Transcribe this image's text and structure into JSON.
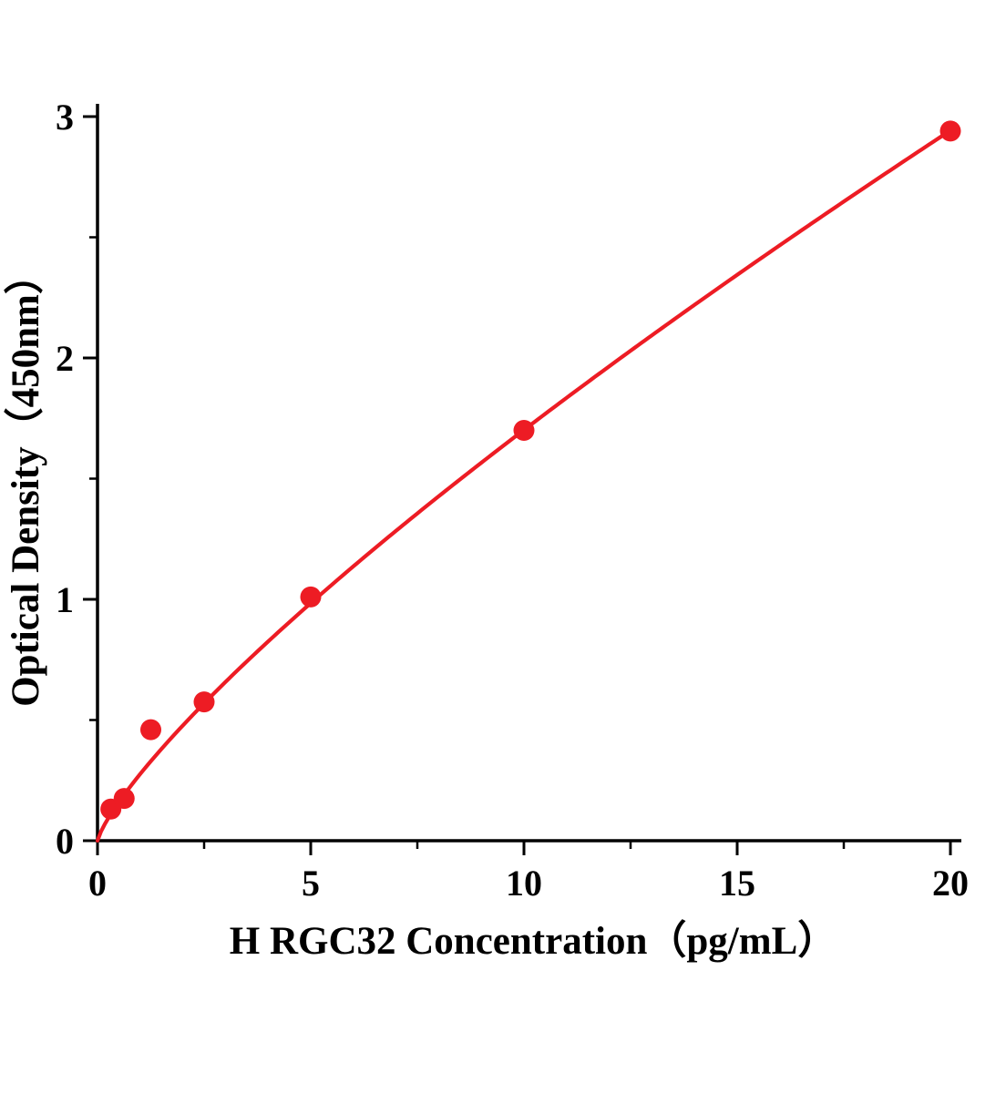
{
  "page": {
    "background": "#ffffff"
  },
  "chart_data": {
    "type": "scatter",
    "title": "",
    "xlabel": "H RGC32 Concentration（pg/mL）",
    "ylabel": "Optical Density（450nm）",
    "xlim": [
      0,
      20
    ],
    "ylim": [
      0,
      3
    ],
    "x_ticks": [
      0,
      5,
      10,
      15,
      20
    ],
    "y_ticks": [
      0,
      1,
      2,
      3
    ],
    "x_minor_ticks": [
      2.5,
      7.5,
      12.5,
      17.5
    ],
    "y_minor_ticks": [
      0.5,
      1.5,
      2.5
    ],
    "grid": false,
    "legend": false,
    "axis_color": "#000000",
    "series": [
      {
        "name": "H RGC32 standard",
        "color": "#ed1c24",
        "marker": "circle",
        "marker_radius": 11.5,
        "x": [
          0.313,
          0.625,
          1.25,
          2.5,
          5,
          10,
          20
        ],
        "y": [
          0.131,
          0.175,
          0.46,
          0.575,
          1.01,
          1.7,
          2.94
        ]
      }
    ],
    "fit_curve": {
      "model": "power",
      "a": 0.276,
      "b": 0.79,
      "x_range": [
        0,
        20
      ],
      "color": "#ed1c24",
      "width": 4.2
    }
  }
}
